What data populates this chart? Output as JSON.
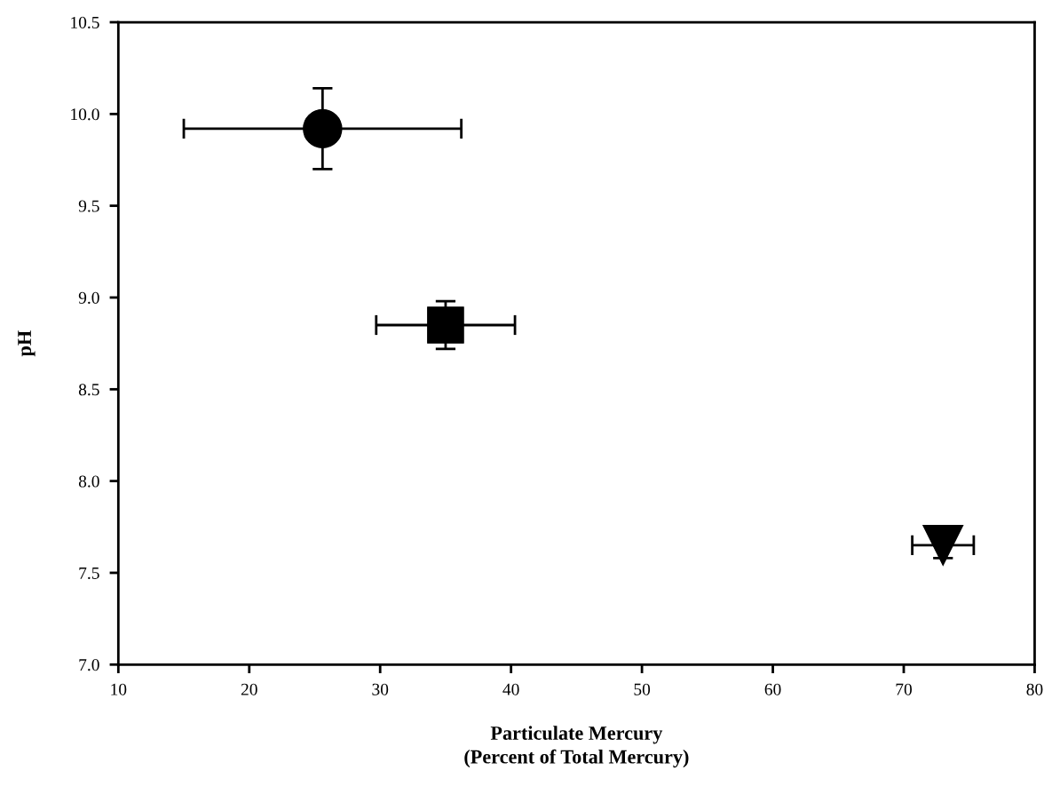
{
  "chart_data": {
    "type": "scatter",
    "xlabel": "Particulate Mercury\n(Percent of Total Mercury)",
    "ylabel": "pH",
    "series": [
      {
        "color": "#000000",
        "marker": "circle",
        "x": [
          25.6
        ],
        "values": [
          9.92
        ],
        "errors": [
          0.22
        ],
        "xerrors": [
          10.6
        ]
      },
      {
        "color": "#000000",
        "marker": "square",
        "x": [
          35.0
        ],
        "values": [
          8.85
        ],
        "errors": [
          0.13
        ],
        "xerrors": [
          5.3
        ]
      },
      {
        "color": "#000000",
        "marker": "triangle",
        "x": [
          73.0
        ],
        "values": [
          7.65
        ],
        "errors": [
          0.07
        ],
        "xerrors": [
          2.35
        ]
      }
    ],
    "xlim": [
      10,
      80
    ],
    "xticks": [
      10,
      20,
      30,
      40,
      50,
      60,
      70,
      80
    ],
    "ylim": [
      7.0,
      10.5
    ],
    "yticks": [
      {
        "value": 7.0,
        "label": "7.0"
      },
      {
        "value": 7.5,
        "label": "7.5"
      },
      {
        "value": 8.0,
        "label": "8.0"
      },
      {
        "value": 8.5,
        "label": "8.5"
      },
      {
        "value": 9.0,
        "label": "9.0"
      },
      {
        "value": 9.5,
        "label": "9.5"
      },
      {
        "value": 10.0,
        "label": "10.0"
      },
      {
        "value": 10.5,
        "label": "10.5"
      }
    ],
    "grid": false
  }
}
